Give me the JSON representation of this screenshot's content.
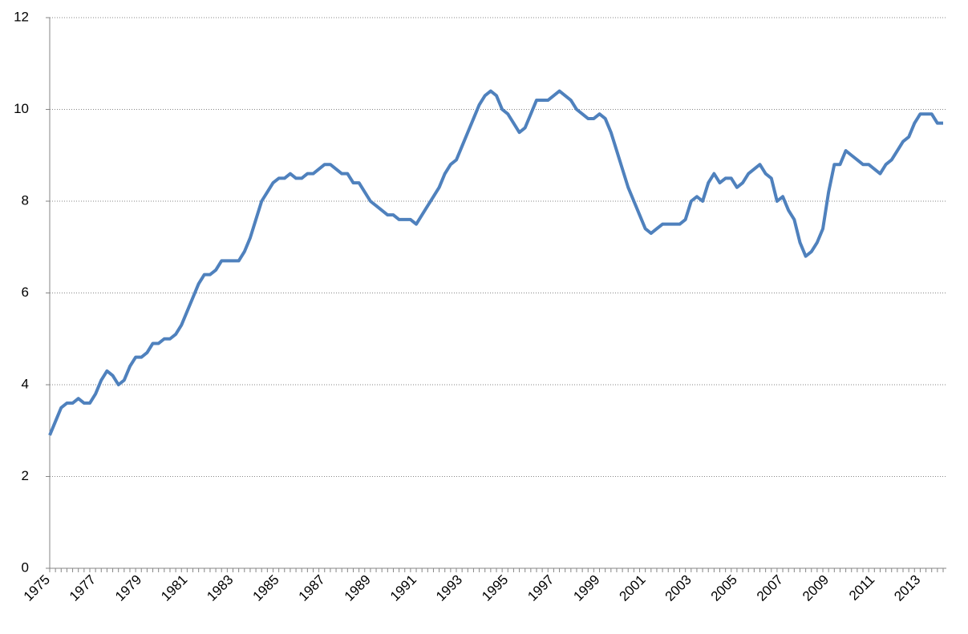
{
  "chart_data": {
    "type": "line",
    "categories": [
      "1975",
      null,
      null,
      null,
      null,
      null,
      null,
      null,
      "1977",
      null,
      null,
      null,
      null,
      null,
      null,
      null,
      "1979",
      null,
      null,
      null,
      null,
      null,
      null,
      null,
      "1981",
      null,
      null,
      null,
      null,
      null,
      null,
      null,
      "1983",
      null,
      null,
      null,
      null,
      null,
      null,
      null,
      "1985",
      null,
      null,
      null,
      null,
      null,
      null,
      null,
      "1987",
      null,
      null,
      null,
      null,
      null,
      null,
      null,
      "1989",
      null,
      null,
      null,
      null,
      null,
      null,
      null,
      "1991",
      null,
      null,
      null,
      null,
      null,
      null,
      null,
      "1993",
      null,
      null,
      null,
      null,
      null,
      null,
      null,
      "1995",
      null,
      null,
      null,
      null,
      null,
      null,
      null,
      "1997",
      null,
      null,
      null,
      null,
      null,
      null,
      null,
      "1999",
      null,
      null,
      null,
      null,
      null,
      null,
      null,
      "2001",
      null,
      null,
      null,
      null,
      null,
      null,
      null,
      "2003",
      null,
      null,
      null,
      null,
      null,
      null,
      null,
      "2005",
      null,
      null,
      null,
      null,
      null,
      null,
      null,
      "2007",
      null,
      null,
      null,
      null,
      null,
      null,
      null,
      "2009",
      null,
      null,
      null,
      null,
      null,
      null,
      null,
      "2011",
      null,
      null,
      null,
      null,
      null,
      null,
      null,
      "2013",
      null,
      null,
      null,
      null
    ],
    "values": [
      2.9,
      3.2,
      3.5,
      3.6,
      3.6,
      3.7,
      3.6,
      3.6,
      3.8,
      4.1,
      4.3,
      4.2,
      4.0,
      4.1,
      4.4,
      4.6,
      4.6,
      4.7,
      4.9,
      4.9,
      5.0,
      5.0,
      5.1,
      5.3,
      5.6,
      5.9,
      6.2,
      6.4,
      6.4,
      6.5,
      6.7,
      6.7,
      6.7,
      6.7,
      6.9,
      7.2,
      7.6,
      8.0,
      8.2,
      8.4,
      8.5,
      8.5,
      8.6,
      8.5,
      8.5,
      8.6,
      8.6,
      8.7,
      8.8,
      8.8,
      8.7,
      8.6,
      8.6,
      8.4,
      8.4,
      8.2,
      8.0,
      7.9,
      7.8,
      7.7,
      7.7,
      7.6,
      7.6,
      7.6,
      7.5,
      7.7,
      7.9,
      8.1,
      8.3,
      8.6,
      8.8,
      8.9,
      9.2,
      9.5,
      9.8,
      10.1,
      10.3,
      10.4,
      10.3,
      10.0,
      9.9,
      9.7,
      9.5,
      9.6,
      9.9,
      10.2,
      10.2,
      10.2,
      10.3,
      10.4,
      10.3,
      10.2,
      10.0,
      9.9,
      9.8,
      9.8,
      9.9,
      9.8,
      9.5,
      9.1,
      8.7,
      8.3,
      8.0,
      7.7,
      7.4,
      7.3,
      7.4,
      7.5,
      7.5,
      7.5,
      7.5,
      7.6,
      8.0,
      8.1,
      8.0,
      8.4,
      8.6,
      8.4,
      8.5,
      8.5,
      8.3,
      8.4,
      8.6,
      8.7,
      8.8,
      8.6,
      8.5,
      8.0,
      8.1,
      7.8,
      7.6,
      7.1,
      6.8,
      6.9,
      7.1,
      7.4,
      8.2,
      8.8,
      8.8,
      9.1,
      9.0,
      8.9,
      8.8,
      8.8,
      8.7,
      8.6,
      8.8,
      8.9,
      9.1,
      9.3,
      9.4,
      9.7,
      9.9,
      9.9,
      9.9,
      9.7,
      9.7
    ],
    "color": "#4f81bd",
    "ylim": [
      0,
      12
    ],
    "yticks": [
      0,
      2,
      4,
      6,
      8,
      10,
      12
    ],
    "grid": true
  }
}
